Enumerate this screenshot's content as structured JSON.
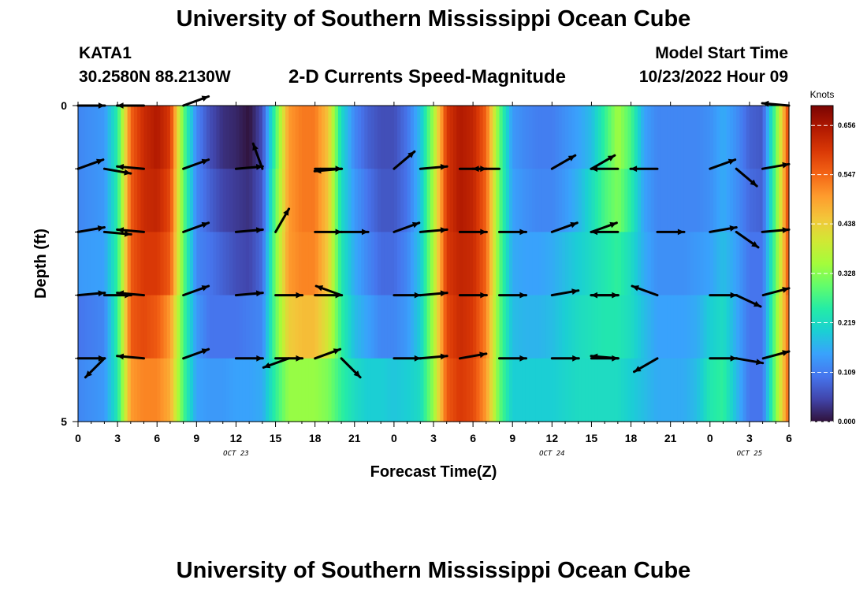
{
  "header": {
    "title": "University of Southern Mississippi Ocean Cube",
    "station": "KATA1",
    "coords": "30.2580N  88.2130W",
    "chart_title": "2-D Currents Speed-Magnitude",
    "model_start_label": "Model Start Time",
    "model_start_value": "10/23/2022 Hour 09"
  },
  "footer": {
    "title": "University of Southern Mississippi Ocean Cube"
  },
  "colors": {
    "arrow": "#000000",
    "axis": "#000000",
    "colormap": [
      "#30123b",
      "#4145ab",
      "#4675ed",
      "#39a2fc",
      "#1bcfd4",
      "#24eca6",
      "#61fc6c",
      "#a4fc3b",
      "#d1e834",
      "#f3c63a",
      "#fe9b2d",
      "#f36315",
      "#d93806",
      "#b11901",
      "#7a0403"
    ]
  },
  "chart_data": {
    "type": "heatmap",
    "title": "2-D Currents Speed-Magnitude",
    "xlabel": "Forecast Time(Z)",
    "ylabel": "Depth (ft)",
    "x_tick_labels": [
      "0",
      "3",
      "6",
      "9",
      "12",
      "15",
      "18",
      "21",
      "0",
      "3",
      "6",
      "9",
      "12",
      "15",
      "18",
      "21",
      "0",
      "3",
      "6"
    ],
    "x_range_hours": [
      0,
      54
    ],
    "date_labels": [
      {
        "hour": 12,
        "label": "OCT 23"
      },
      {
        "hour": 36,
        "label": "OCT 24"
      },
      {
        "hour": 51,
        "label": "OCT 25"
      }
    ],
    "y_tick_labels": [
      "0",
      "5"
    ],
    "ylim_ft": [
      0,
      5
    ],
    "depth_rows": 5,
    "colorbar": {
      "unit": "Knots",
      "range": [
        0.0,
        0.7
      ],
      "ticks": [
        "0.000",
        "0.109",
        "0.219",
        "0.328",
        "0.438",
        "0.547",
        "0.656"
      ]
    },
    "speed_knots_by_hour": {
      "hours": [
        0,
        2,
        3,
        4,
        5,
        6,
        7,
        8,
        9,
        10,
        11,
        12,
        13,
        14,
        15,
        16,
        17,
        18,
        19,
        20,
        21,
        22,
        23,
        24,
        25,
        26,
        27,
        28,
        29,
        30,
        31,
        32,
        33,
        34,
        35,
        36,
        37,
        38,
        39,
        40,
        41,
        42,
        43,
        44,
        45,
        46,
        47,
        48,
        49,
        50,
        51,
        52,
        53,
        54
      ],
      "rows": [
        [
          0.12,
          0.14,
          0.25,
          0.55,
          0.62,
          0.65,
          0.6,
          0.3,
          0.12,
          0.06,
          0.03,
          0.02,
          0.0,
          0.06,
          0.28,
          0.5,
          0.53,
          0.53,
          0.45,
          0.22,
          0.12,
          0.08,
          0.06,
          0.06,
          0.1,
          0.18,
          0.35,
          0.6,
          0.65,
          0.63,
          0.55,
          0.3,
          0.14,
          0.12,
          0.11,
          0.11,
          0.13,
          0.15,
          0.18,
          0.26,
          0.35,
          0.28,
          0.15,
          0.12,
          0.12,
          0.12,
          0.12,
          0.13,
          0.16,
          0.13,
          0.08,
          0.07,
          0.3,
          0.6
        ],
        [
          0.12,
          0.14,
          0.25,
          0.56,
          0.62,
          0.63,
          0.58,
          0.3,
          0.12,
          0.08,
          0.05,
          0.04,
          0.03,
          0.07,
          0.3,
          0.5,
          0.53,
          0.53,
          0.45,
          0.22,
          0.14,
          0.1,
          0.07,
          0.07,
          0.1,
          0.18,
          0.36,
          0.6,
          0.65,
          0.63,
          0.55,
          0.3,
          0.15,
          0.13,
          0.12,
          0.12,
          0.14,
          0.17,
          0.22,
          0.28,
          0.32,
          0.25,
          0.15,
          0.12,
          0.12,
          0.12,
          0.12,
          0.13,
          0.16,
          0.13,
          0.09,
          0.08,
          0.3,
          0.6
        ],
        [
          0.14,
          0.15,
          0.26,
          0.56,
          0.6,
          0.6,
          0.56,
          0.3,
          0.12,
          0.1,
          0.08,
          0.06,
          0.05,
          0.09,
          0.32,
          0.5,
          0.52,
          0.52,
          0.44,
          0.24,
          0.16,
          0.12,
          0.09,
          0.09,
          0.12,
          0.19,
          0.36,
          0.6,
          0.63,
          0.62,
          0.55,
          0.3,
          0.16,
          0.15,
          0.15,
          0.16,
          0.18,
          0.2,
          0.22,
          0.24,
          0.26,
          0.22,
          0.16,
          0.13,
          0.13,
          0.13,
          0.14,
          0.15,
          0.18,
          0.15,
          0.1,
          0.1,
          0.3,
          0.58
        ],
        [
          0.1,
          0.12,
          0.26,
          0.56,
          0.58,
          0.56,
          0.5,
          0.28,
          0.14,
          0.1,
          0.1,
          0.1,
          0.11,
          0.12,
          0.3,
          0.44,
          0.46,
          0.46,
          0.4,
          0.26,
          0.18,
          0.15,
          0.12,
          0.12,
          0.14,
          0.2,
          0.36,
          0.58,
          0.62,
          0.6,
          0.52,
          0.3,
          0.18,
          0.17,
          0.17,
          0.18,
          0.2,
          0.22,
          0.23,
          0.24,
          0.24,
          0.22,
          0.18,
          0.15,
          0.15,
          0.15,
          0.16,
          0.2,
          0.22,
          0.16,
          0.1,
          0.1,
          0.32,
          0.56
        ],
        [
          0.12,
          0.14,
          0.24,
          0.5,
          0.52,
          0.52,
          0.48,
          0.28,
          0.15,
          0.14,
          0.14,
          0.15,
          0.15,
          0.16,
          0.26,
          0.34,
          0.34,
          0.34,
          0.32,
          0.26,
          0.22,
          0.2,
          0.2,
          0.19,
          0.2,
          0.22,
          0.34,
          0.56,
          0.6,
          0.58,
          0.5,
          0.3,
          0.2,
          0.2,
          0.2,
          0.2,
          0.21,
          0.22,
          0.22,
          0.22,
          0.22,
          0.2,
          0.18,
          0.16,
          0.16,
          0.16,
          0.18,
          0.24,
          0.26,
          0.18,
          0.1,
          0.1,
          0.32,
          0.56
        ]
      ]
    },
    "arrows": {
      "note": "direction in degrees, 0 = pointing right (east), counter-clockwise positive",
      "columns_hours": [
        0,
        2,
        3,
        5,
        8,
        12,
        14,
        15,
        16,
        18,
        20,
        24,
        26,
        29,
        32,
        36,
        39,
        41,
        44,
        48,
        50,
        52,
        54
      ],
      "rows": [
        [
          0,
          null,
          null,
          180,
          20,
          null,
          null,
          null,
          null,
          null,
          null,
          null,
          null,
          null,
          null,
          null,
          null,
          null,
          null,
          null,
          null,
          null,
          175
        ],
        [
          20,
          -10,
          null,
          175,
          20,
          5,
          110,
          null,
          null,
          0,
          185,
          40,
          5,
          0,
          180,
          30,
          30,
          180,
          180,
          20,
          -40,
          null,
          10
        ],
        [
          10,
          -5,
          null,
          175,
          20,
          5,
          null,
          60,
          null,
          0,
          0,
          20,
          5,
          0,
          0,
          20,
          20,
          180,
          0,
          10,
          -35,
          null,
          5
        ],
        [
          5,
          0,
          null,
          175,
          20,
          5,
          null,
          0,
          null,
          0,
          160,
          0,
          5,
          0,
          0,
          10,
          0,
          180,
          160,
          0,
          -25,
          null,
          15
        ],
        [
          0,
          225,
          null,
          175,
          20,
          0,
          null,
          0,
          200,
          20,
          315,
          0,
          5,
          10,
          0,
          0,
          0,
          175,
          210,
          0,
          -10,
          null,
          15
        ]
      ]
    }
  }
}
